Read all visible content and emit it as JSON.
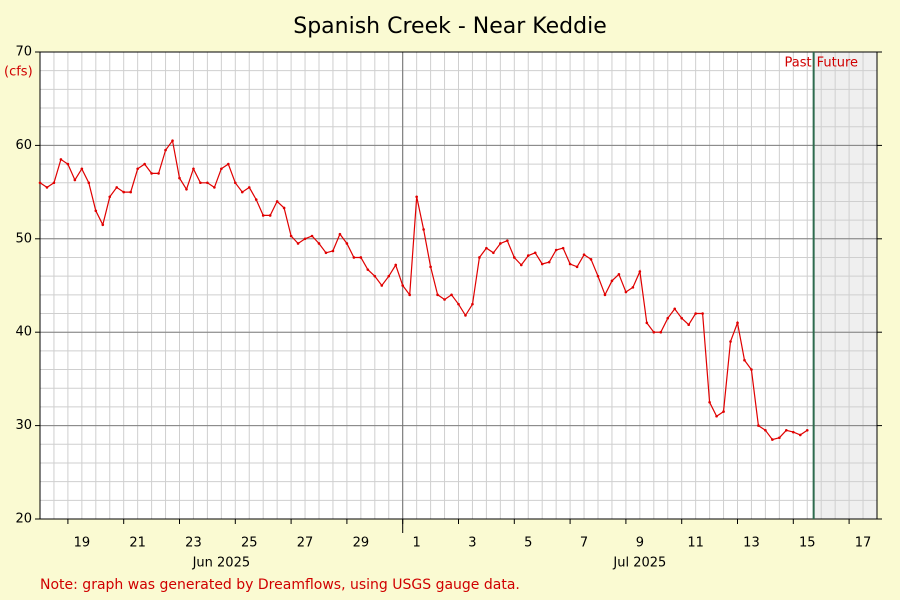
{
  "chart_data": {
    "type": "line",
    "title": "Spanish Creek - Near Keddie",
    "y_unit": "(cfs)",
    "note": "Note: graph was generated by Dreamflows, using USGS gauge data.",
    "past_label": "Past",
    "future_label": "Future",
    "now": "2025-07-15 17:30",
    "xlim": [
      "2025-06-18 00:00",
      "2025-07-18 00:00"
    ],
    "ylim": [
      20,
      70
    ],
    "yticks": [
      20,
      30,
      40,
      50,
      60,
      70
    ],
    "xticks": [
      {
        "value": "2025-06-19",
        "label": "19"
      },
      {
        "value": "2025-06-21",
        "label": "21"
      },
      {
        "value": "2025-06-23",
        "label": "23"
      },
      {
        "value": "2025-06-25",
        "label": "25"
      },
      {
        "value": "2025-06-27",
        "label": "27"
      },
      {
        "value": "2025-06-29",
        "label": "29"
      },
      {
        "value": "2025-07-01",
        "label": "1"
      },
      {
        "value": "2025-07-03",
        "label": "3"
      },
      {
        "value": "2025-07-05",
        "label": "5"
      },
      {
        "value": "2025-07-07",
        "label": "7"
      },
      {
        "value": "2025-07-09",
        "label": "9"
      },
      {
        "value": "2025-07-11",
        "label": "11"
      },
      {
        "value": "2025-07-13",
        "label": "13"
      },
      {
        "value": "2025-07-15",
        "label": "15"
      },
      {
        "value": "2025-07-17",
        "label": "17"
      }
    ],
    "month_labels": [
      {
        "value": "2025-06-24",
        "label": "Jun 2025"
      },
      {
        "value": "2025-07-09",
        "label": "Jul 2025"
      }
    ],
    "month_boundaries": [
      "2025-07-01"
    ],
    "grid": true,
    "color": "#e00000",
    "x": [
      "2025-06-18 00:00",
      "2025-06-18 06:00",
      "2025-06-18 12:00",
      "2025-06-18 18:00",
      "2025-06-19 00:00",
      "2025-06-19 06:00",
      "2025-06-19 12:00",
      "2025-06-19 18:00",
      "2025-06-20 00:00",
      "2025-06-20 06:00",
      "2025-06-20 12:00",
      "2025-06-20 18:00",
      "2025-06-21 00:00",
      "2025-06-21 06:00",
      "2025-06-21 12:00",
      "2025-06-21 18:00",
      "2025-06-22 00:00",
      "2025-06-22 06:00",
      "2025-06-22 12:00",
      "2025-06-22 18:00",
      "2025-06-23 00:00",
      "2025-06-23 06:00",
      "2025-06-23 12:00",
      "2025-06-23 18:00",
      "2025-06-24 00:00",
      "2025-06-24 06:00",
      "2025-06-24 12:00",
      "2025-06-24 18:00",
      "2025-06-25 00:00",
      "2025-06-25 06:00",
      "2025-06-25 12:00",
      "2025-06-25 18:00",
      "2025-06-26 00:00",
      "2025-06-26 06:00",
      "2025-06-26 12:00",
      "2025-06-26 18:00",
      "2025-06-27 00:00",
      "2025-06-27 06:00",
      "2025-06-27 12:00",
      "2025-06-27 18:00",
      "2025-06-28 00:00",
      "2025-06-28 06:00",
      "2025-06-28 12:00",
      "2025-06-28 18:00",
      "2025-06-29 00:00",
      "2025-06-29 06:00",
      "2025-06-29 12:00",
      "2025-06-29 18:00",
      "2025-06-30 00:00",
      "2025-06-30 06:00",
      "2025-06-30 12:00",
      "2025-06-30 18:00",
      "2025-07-01 00:00",
      "2025-07-01 06:00",
      "2025-07-01 12:00",
      "2025-07-01 18:00",
      "2025-07-02 00:00",
      "2025-07-02 06:00",
      "2025-07-02 12:00",
      "2025-07-02 18:00",
      "2025-07-03 00:00",
      "2025-07-03 06:00",
      "2025-07-03 12:00",
      "2025-07-03 18:00",
      "2025-07-04 00:00",
      "2025-07-04 06:00",
      "2025-07-04 12:00",
      "2025-07-04 18:00",
      "2025-07-05 00:00",
      "2025-07-05 06:00",
      "2025-07-05 12:00",
      "2025-07-05 18:00",
      "2025-07-06 00:00",
      "2025-07-06 06:00",
      "2025-07-06 12:00",
      "2025-07-06 18:00",
      "2025-07-07 00:00",
      "2025-07-07 06:00",
      "2025-07-07 12:00",
      "2025-07-07 18:00",
      "2025-07-08 00:00",
      "2025-07-08 06:00",
      "2025-07-08 12:00",
      "2025-07-08 18:00",
      "2025-07-09 00:00",
      "2025-07-09 06:00",
      "2025-07-09 12:00",
      "2025-07-09 18:00",
      "2025-07-10 00:00",
      "2025-07-10 06:00",
      "2025-07-10 12:00",
      "2025-07-10 18:00",
      "2025-07-11 00:00",
      "2025-07-11 06:00",
      "2025-07-11 12:00",
      "2025-07-11 18:00",
      "2025-07-12 00:00",
      "2025-07-12 06:00",
      "2025-07-12 12:00",
      "2025-07-12 18:00",
      "2025-07-13 00:00",
      "2025-07-13 06:00",
      "2025-07-13 12:00",
      "2025-07-13 18:00",
      "2025-07-14 00:00",
      "2025-07-14 06:00",
      "2025-07-14 12:00",
      "2025-07-14 18:00",
      "2025-07-15 00:00",
      "2025-07-15 06:00",
      "2025-07-15 12:00"
    ],
    "values": [
      56,
      55.5,
      56,
      58.5,
      58,
      56.3,
      57.5,
      56,
      53,
      51.5,
      54.5,
      55.5,
      55,
      55,
      57.5,
      58,
      57,
      57,
      59.5,
      60.5,
      56.5,
      55.3,
      57.5,
      56,
      56,
      55.5,
      57.5,
      58,
      56,
      55,
      55.5,
      54.2,
      52.5,
      52.5,
      54,
      53.3,
      50.3,
      49.5,
      50,
      50.3,
      49.5,
      48.5,
      48.7,
      50.5,
      49.5,
      48,
      48,
      46.7,
      46,
      45,
      46,
      47.2,
      45,
      44,
      54.5,
      51,
      47,
      44,
      43.5,
      44,
      43,
      41.8,
      43,
      48,
      49,
      48.5,
      49.5,
      49.8,
      48,
      47.2,
      48.2,
      48.5,
      47.3,
      47.5,
      48.8,
      49,
      47.3,
      47,
      48.3,
      47.8,
      46,
      44,
      45.5,
      46.2,
      44.3,
      44.8,
      46.5,
      41,
      40,
      40,
      41.5,
      42.5,
      41.5,
      40.8,
      42,
      42,
      32.5,
      31,
      31.5,
      39,
      41,
      37,
      36,
      30,
      29.5,
      28.5,
      28.7,
      29.5,
      29.3,
      29,
      29.5
    ]
  }
}
